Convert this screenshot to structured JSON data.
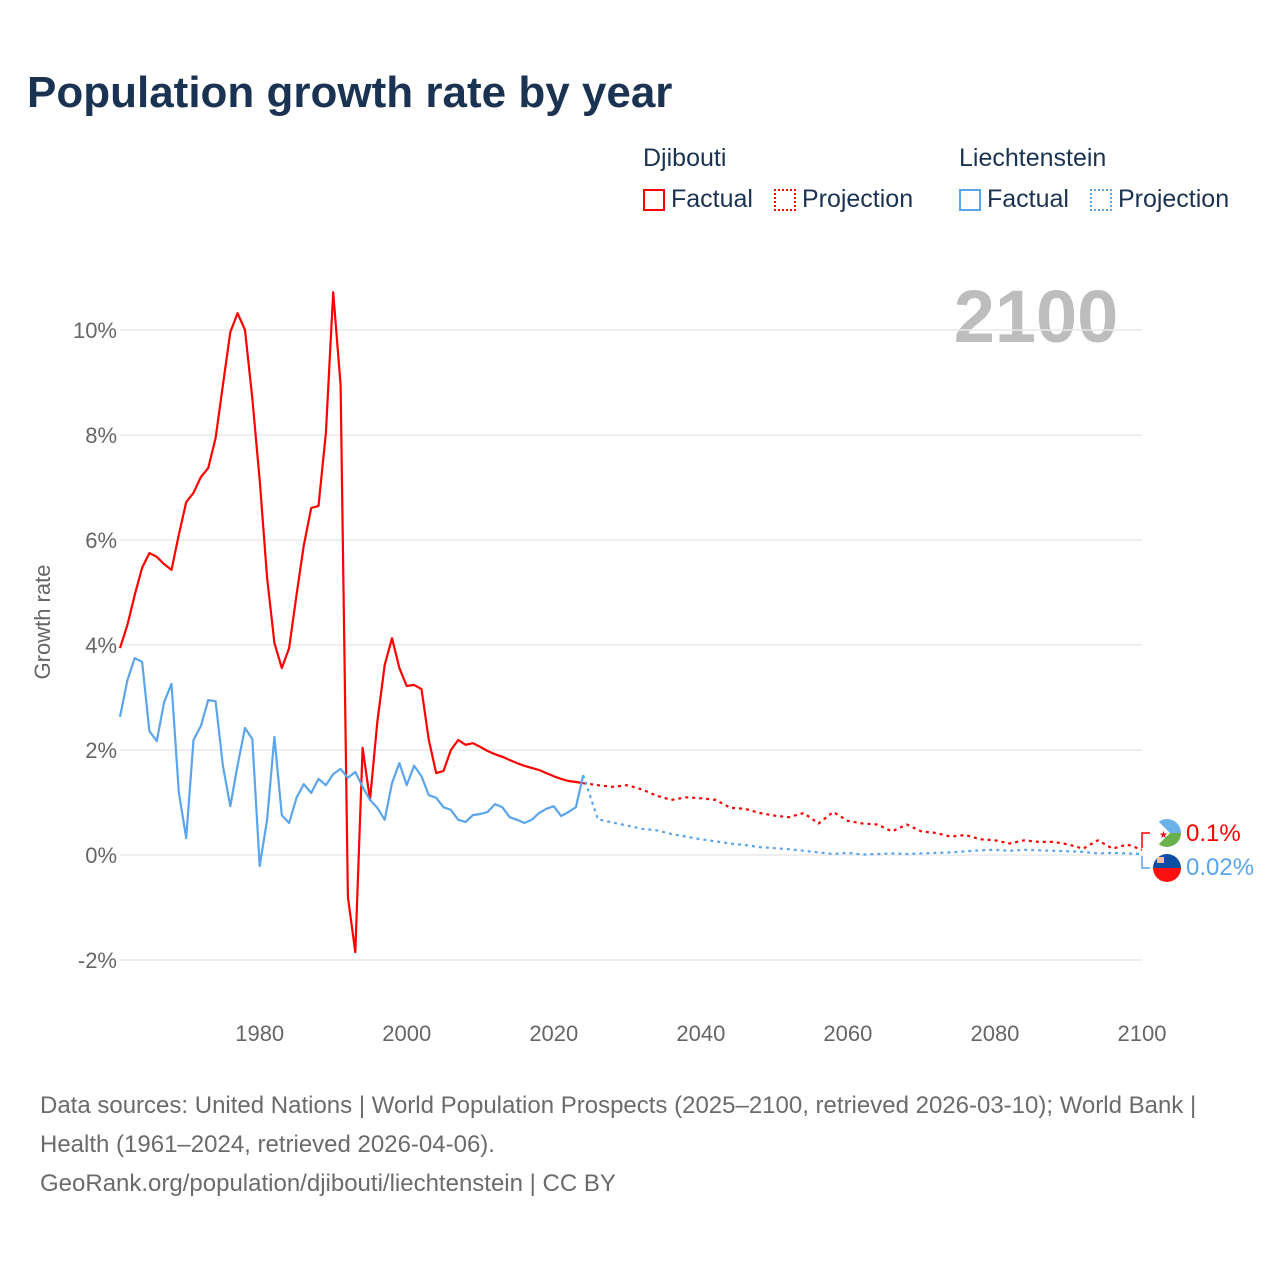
{
  "title": "Population growth rate by year",
  "legend": [
    {
      "country": "Djibouti",
      "factual": "Factual",
      "projection": "Projection",
      "color": "#ff0000"
    },
    {
      "country": "Liechtenstein",
      "factual": "Factual",
      "projection": "Projection",
      "color": "#5aa5ec"
    }
  ],
  "footer": {
    "line1": "Data sources: United Nations | World Population Prospects (2025–2100, retrieved 2026-03-10); World Bank | Health (1961–2024, retrieved 2026-04-06).",
    "line2": "GeoRank.org/population/djibouti/liechtenstein | CC BY"
  },
  "chart_data": {
    "type": "line",
    "title": "Population growth rate by year",
    "ylabel": "Growth rate",
    "xlabel": "",
    "current_year_label": "2100",
    "xlim": [
      1961,
      2100
    ],
    "ylim": [
      -3,
      11
    ],
    "x_ticks": [
      "1980",
      "2000",
      "2020",
      "2040",
      "2060",
      "2080",
      "2100"
    ],
    "x_tick_values": [
      1980,
      2000,
      2020,
      2040,
      2060,
      2080,
      2100
    ],
    "y_ticks": [
      "-2%",
      "0%",
      "2%",
      "4%",
      "6%",
      "8%",
      "10%"
    ],
    "y_tick_values": [
      -2,
      0,
      2,
      4,
      6,
      8,
      10
    ],
    "grid": true,
    "legend_position": "top-right",
    "end_labels": {
      "Djibouti": "0.1%",
      "Liechtenstein": "0.02%"
    },
    "series": [
      {
        "name": "Djibouti",
        "kind": "Factual",
        "color": "#ff0000",
        "start_year": 1961,
        "step": 1,
        "values": [
          3.94,
          4.38,
          4.95,
          5.47,
          5.75,
          5.68,
          5.54,
          5.43,
          6.1,
          6.72,
          6.9,
          7.2,
          7.37,
          7.94,
          8.95,
          9.96,
          10.32,
          10.0,
          8.7,
          7.14,
          5.28,
          4.04,
          3.56,
          3.94,
          4.95,
          5.9,
          6.61,
          6.65,
          8.04,
          10.72,
          8.95,
          -0.8,
          -1.85,
          2.04,
          1.05,
          2.53,
          3.62,
          4.13,
          3.56,
          3.22,
          3.24,
          3.16,
          2.19,
          1.56,
          1.6,
          2.0,
          2.19,
          2.1,
          2.13,
          2.06,
          1.98,
          1.92,
          1.87,
          1.81,
          1.75,
          1.7,
          1.66,
          1.62,
          1.56,
          1.5,
          1.45,
          1.41,
          1.39,
          1.37
        ]
      },
      {
        "name": "Djibouti",
        "kind": "Projection",
        "color": "#ff0000",
        "start_year": 2024,
        "step": 2,
        "values": [
          1.37,
          1.33,
          1.3,
          1.33,
          1.25,
          1.13,
          1.05,
          1.1,
          1.08,
          1.05,
          0.9,
          0.88,
          0.8,
          0.75,
          0.72,
          0.8,
          0.6,
          0.82,
          0.65,
          0.6,
          0.58,
          0.45,
          0.58,
          0.45,
          0.42,
          0.35,
          0.38,
          0.3,
          0.28,
          0.22,
          0.28,
          0.25,
          0.25,
          0.2,
          0.12,
          0.28,
          0.12,
          0.2,
          0.1
        ]
      },
      {
        "name": "Liechtenstein",
        "kind": "Factual",
        "color": "#5aa5ec",
        "start_year": 1961,
        "step": 1,
        "values": [
          2.63,
          3.33,
          3.75,
          3.68,
          2.36,
          2.17,
          2.91,
          3.26,
          1.2,
          0.32,
          2.19,
          2.46,
          2.95,
          2.93,
          1.7,
          0.93,
          1.71,
          2.42,
          2.21,
          -0.21,
          0.67,
          2.25,
          0.76,
          0.61,
          1.09,
          1.35,
          1.18,
          1.45,
          1.33,
          1.54,
          1.64,
          1.47,
          1.58,
          1.3,
          1.05,
          0.9,
          0.67,
          1.37,
          1.75,
          1.33,
          1.7,
          1.5,
          1.14,
          1.09,
          0.91,
          0.86,
          0.67,
          0.63,
          0.76,
          0.78,
          0.82,
          0.97,
          0.91,
          0.72,
          0.67,
          0.61,
          0.67,
          0.8,
          0.88,
          0.93,
          0.74,
          0.82,
          0.91,
          1.52
        ]
      },
      {
        "name": "Liechtenstein",
        "kind": "Projection",
        "color": "#5aa5ec",
        "start_year": 2024,
        "step": 2,
        "values": [
          1.52,
          0.68,
          0.62,
          0.56,
          0.5,
          0.47,
          0.4,
          0.35,
          0.3,
          0.26,
          0.22,
          0.19,
          0.15,
          0.13,
          0.11,
          0.08,
          0.05,
          0.02,
          0.04,
          0.01,
          0.02,
          0.03,
          0.02,
          0.03,
          0.04,
          0.05,
          0.07,
          0.09,
          0.1,
          0.08,
          0.1,
          0.09,
          0.08,
          0.07,
          0.06,
          0.03,
          0.04,
          0.03,
          0.02
        ]
      }
    ]
  }
}
